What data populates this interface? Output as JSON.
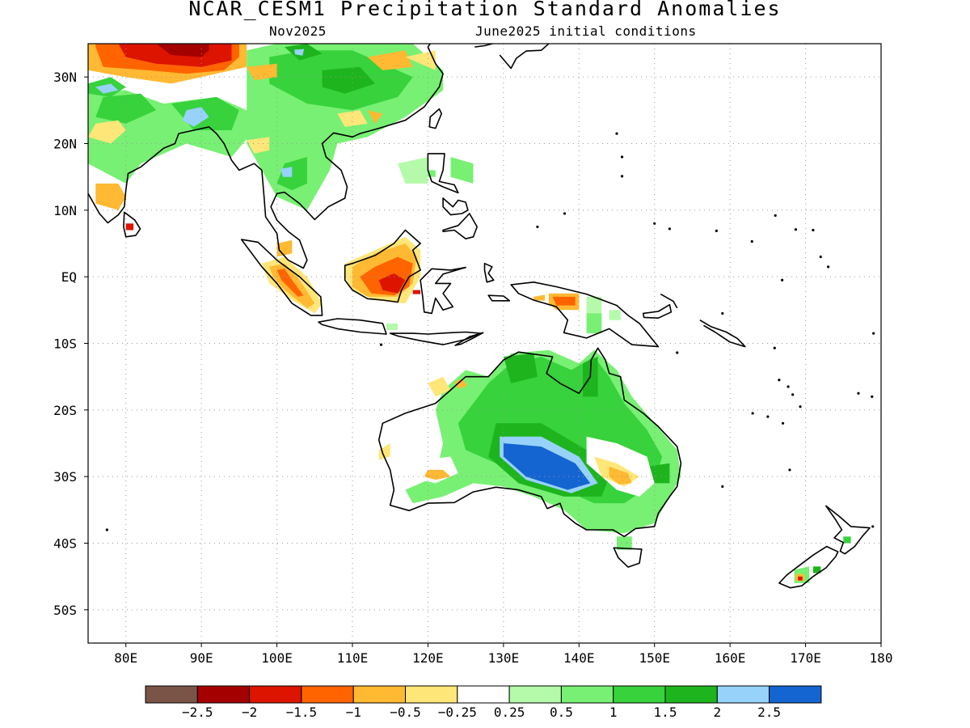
{
  "title": "NCAR_CESM1 Precipitation Standard Anomalies",
  "subtitle_left": "Nov2025",
  "subtitle_right": "June2025 initial conditions",
  "map": {
    "lon_range": [
      75,
      180
    ],
    "lat_range": [
      -55,
      35
    ],
    "lon_ticks": [
      {
        "value": 80,
        "label": "80E"
      },
      {
        "value": 90,
        "label": "90E"
      },
      {
        "value": 100,
        "label": "100E"
      },
      {
        "value": 110,
        "label": "110E"
      },
      {
        "value": 120,
        "label": "120E"
      },
      {
        "value": 130,
        "label": "130E"
      },
      {
        "value": 140,
        "label": "140E"
      },
      {
        "value": 150,
        "label": "150E"
      },
      {
        "value": 160,
        "label": "160E"
      },
      {
        "value": 170,
        "label": "170E"
      },
      {
        "value": 180,
        "label": "180"
      }
    ],
    "lat_ticks": [
      {
        "value": 30,
        "label": "30N"
      },
      {
        "value": 20,
        "label": "20N"
      },
      {
        "value": 10,
        "label": "10N"
      },
      {
        "value": 0,
        "label": "EQ"
      },
      {
        "value": -10,
        "label": "10S"
      },
      {
        "value": -20,
        "label": "20S"
      },
      {
        "value": -30,
        "label": "30S"
      },
      {
        "value": -40,
        "label": "40S"
      },
      {
        "value": -50,
        "label": "50S"
      }
    ],
    "grid": "dotted",
    "anomaly_regions": [
      {
        "name": "central-australia-max",
        "lon": [
          128,
          140
        ],
        "lat": [
          -33,
          -24
        ],
        "level": "gt-2.5"
      },
      {
        "name": "australia-wet-band",
        "lon": [
          122,
          152
        ],
        "lat": [
          -38,
          -14
        ],
        "level": "1-1.5"
      },
      {
        "name": "borneo-dry",
        "lon": [
          110,
          119
        ],
        "lat": [
          -4,
          5
        ],
        "level": "-1.5 to -1"
      },
      {
        "name": "sumatra-dry",
        "lon": [
          98,
          106
        ],
        "lat": [
          -5,
          3
        ],
        "level": "-1 to -0.5"
      },
      {
        "name": "tibet-dry",
        "lon": [
          75,
          96
        ],
        "lat": [
          30,
          35
        ],
        "level": "-2 to -1.5"
      },
      {
        "name": "south-china-wet",
        "lon": [
          100,
          120
        ],
        "lat": [
          21,
          35
        ],
        "level": "1-1.5"
      },
      {
        "name": "india-wet",
        "lon": [
          75,
          92
        ],
        "lat": [
          17,
          32
        ],
        "level": "0.5-1"
      },
      {
        "name": "new-guinea-dry",
        "lon": [
          136,
          140
        ],
        "lat": [
          -6,
          -3
        ],
        "level": "-1.5 to -1"
      }
    ]
  },
  "colorbar": {
    "colors": [
      "#7a5547",
      "#a50000",
      "#dc1400",
      "#ff6400",
      "#ffb932",
      "#ffe678",
      "#ffffff",
      "#b4faaa",
      "#78f073",
      "#37d23c",
      "#1eb41e",
      "#96d2fa",
      "#1464d2"
    ],
    "labels": [
      "−2.5",
      "−2",
      "−1.5",
      "−1",
      "−0.5",
      "−0.25",
      "0.25",
      "0.5",
      "1",
      "1.5",
      "2",
      "2.5"
    ]
  }
}
